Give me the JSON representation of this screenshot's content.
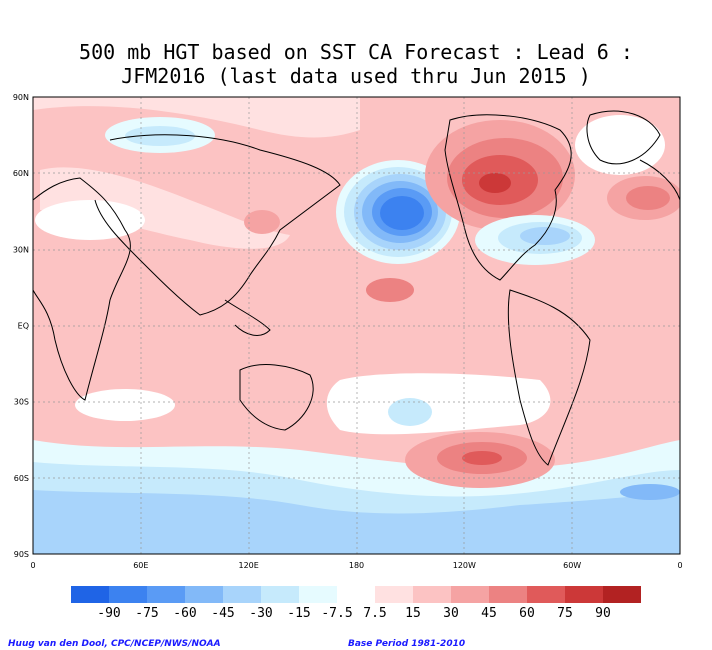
{
  "title": {
    "line1": "500 mb HGT based on SST CA Forecast : Lead 6 :",
    "line2": "JFM2016 (last data used thru Jun 2015 )"
  },
  "map": {
    "lat_labels": [
      "90N",
      "60N",
      "30N",
      "EQ",
      "30S",
      "60S",
      "90S"
    ],
    "lon_labels": [
      "0",
      "60E",
      "120E",
      "180",
      "120W",
      "60W",
      "0"
    ],
    "colors": {
      "land_outline": "#000000",
      "grid_line": "#999999",
      "positive_contour": "#b22222",
      "negative_contour": "#1f4fb0"
    }
  },
  "legend": {
    "labels": [
      "-90",
      "-75",
      "-60",
      "-45",
      "-30",
      "-15",
      "-7.5",
      "7.5",
      "15",
      "30",
      "45",
      "60",
      "75",
      "90"
    ],
    "colors": [
      "#1f64e6",
      "#3c82f0",
      "#5a9bf5",
      "#82b9f8",
      "#a8d4fb",
      "#c6eafc",
      "#e6fbff",
      "#ffffff",
      "#ffe1e1",
      "#fcc3c3",
      "#f5a3a3",
      "#ec8282",
      "#e05a5a",
      "#cc3838",
      "#b22222"
    ]
  },
  "footer": {
    "credit": "Huug van den Dool, CPC/NCEP/NWS/NOAA",
    "base_period": "Base Period 1981-2010"
  }
}
